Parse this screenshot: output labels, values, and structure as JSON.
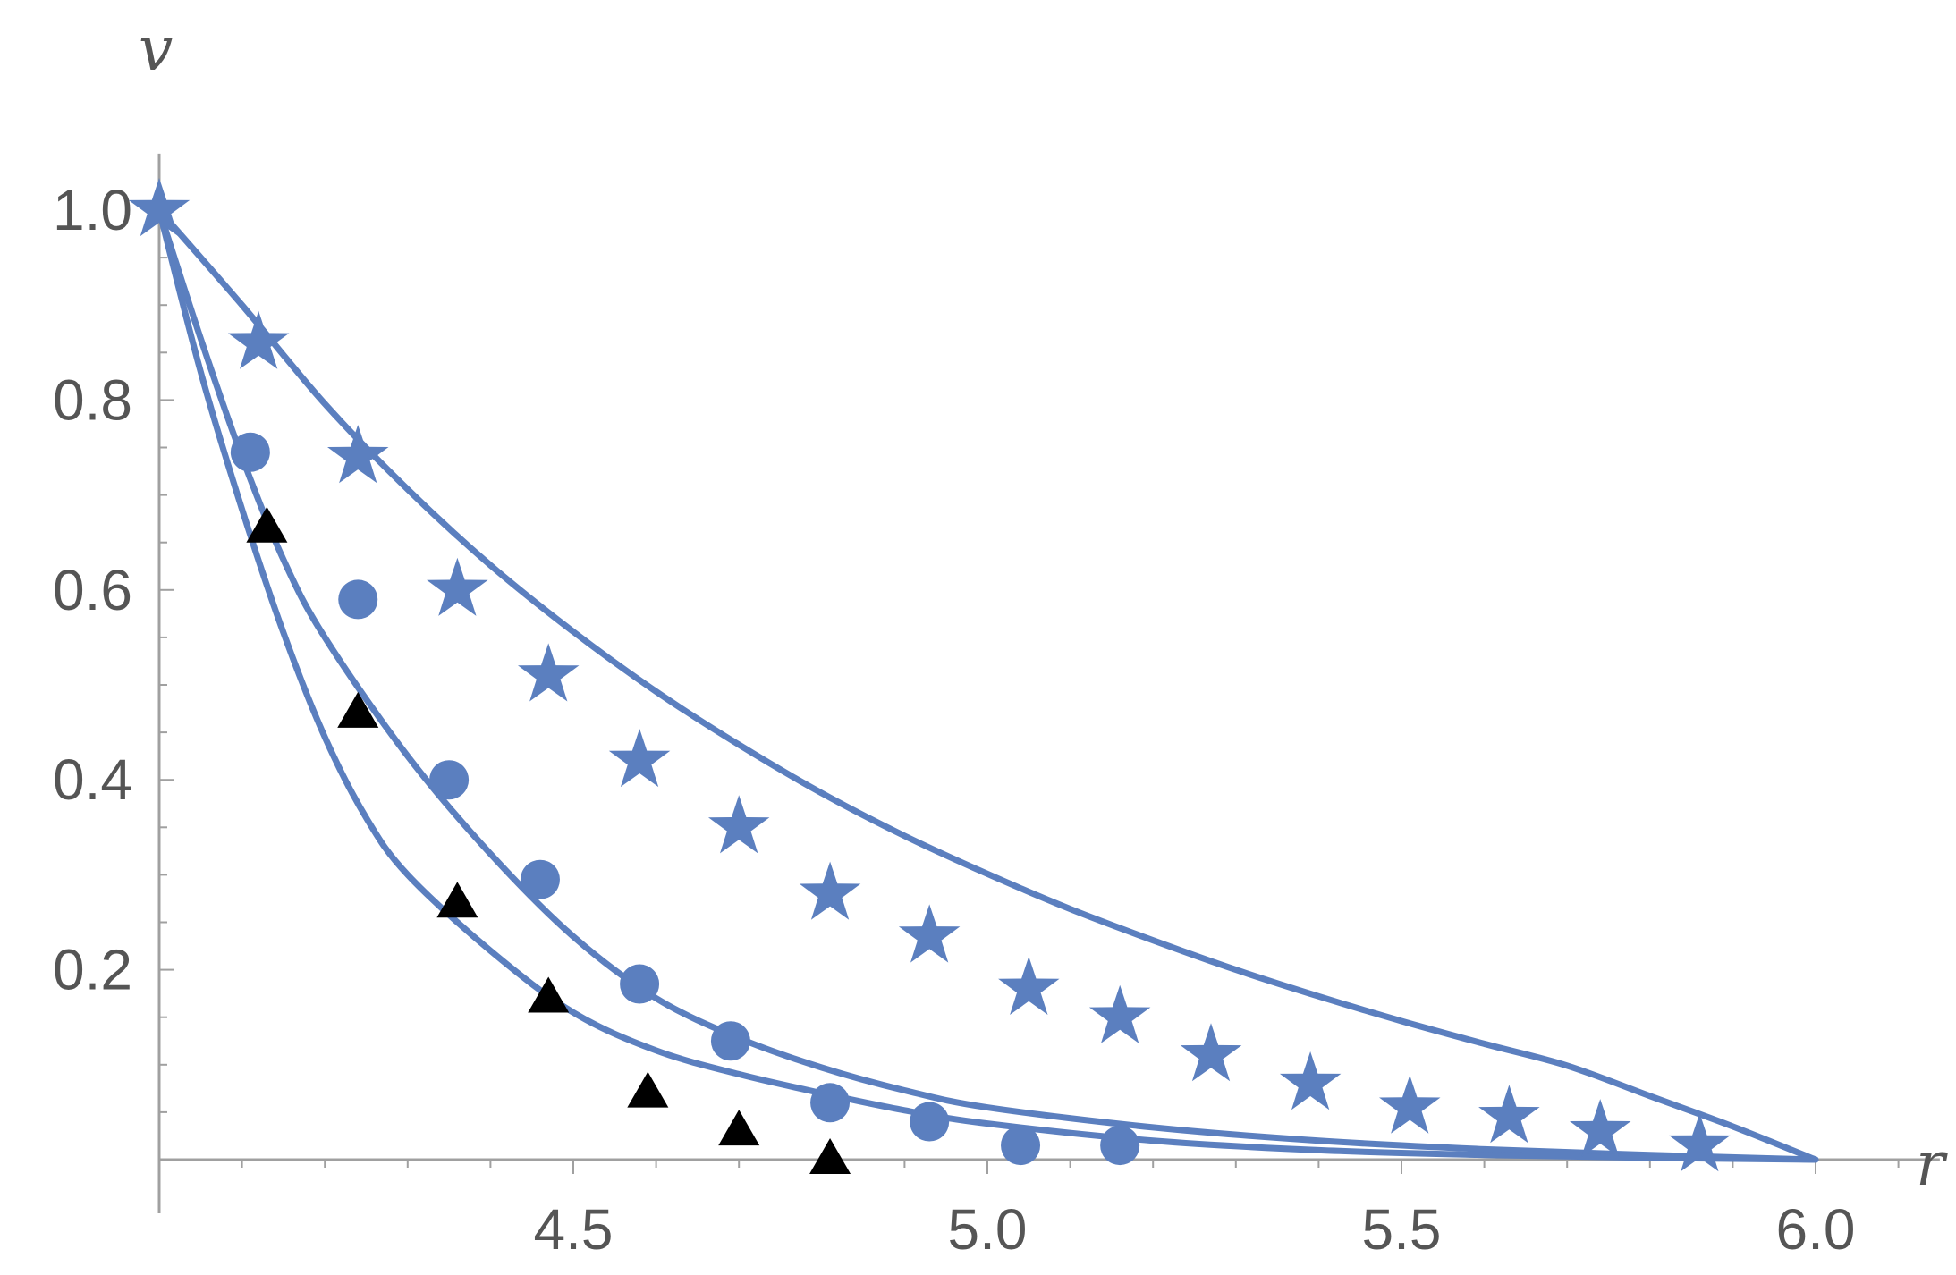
{
  "chart_data": {
    "type": "scatter",
    "title": "",
    "xlabel": "r",
    "ylabel": "v",
    "xlim": [
      4.0,
      6.15
    ],
    "ylim": [
      0.0,
      1.05
    ],
    "x_ticks": [
      4.5,
      5.0,
      5.5,
      6.0
    ],
    "x_tick_labels": [
      "4.5",
      "5.0",
      "5.5",
      "6.0"
    ],
    "y_ticks": [
      0.2,
      0.4,
      0.6,
      0.8,
      1.0
    ],
    "y_tick_labels": [
      "0.2",
      "0.4",
      "0.6",
      "0.8",
      "1.0"
    ],
    "grid": false,
    "colors": {
      "curve": "#5b7fbf",
      "star": "#5b7fbf",
      "circle": "#5b7fbf",
      "triangle": "#000000",
      "axis": "#a0a0a0",
      "text": "#555555"
    },
    "curves": [
      {
        "x": [
          4.0,
          4.1,
          4.2,
          4.3,
          4.4,
          4.5,
          4.6,
          4.7,
          4.8,
          4.9,
          5.0,
          5.1,
          5.2,
          5.3,
          5.4,
          5.5,
          5.6,
          5.7,
          5.8,
          5.9,
          6.0
        ],
        "y": [
          1.0,
          0.9,
          0.796,
          0.706,
          0.626,
          0.556,
          0.493,
          0.437,
          0.386,
          0.341,
          0.301,
          0.264,
          0.231,
          0.2,
          0.172,
          0.146,
          0.122,
          0.099,
          0.067,
          0.035,
          0.0
        ]
      },
      {
        "x": [
          4.0,
          4.05,
          4.1,
          4.15,
          4.2,
          4.3,
          4.4,
          4.5,
          4.6,
          4.7,
          4.8,
          4.9,
          5.0,
          5.2,
          5.4,
          5.6,
          5.8,
          6.0
        ],
        "y": [
          1.0,
          0.865,
          0.74,
          0.632,
          0.55,
          0.425,
          0.322,
          0.235,
          0.17,
          0.128,
          0.097,
          0.073,
          0.055,
          0.034,
          0.02,
          0.011,
          0.005,
          0.0
        ]
      },
      {
        "x": [
          4.0,
          4.05,
          4.1,
          4.15,
          4.2,
          4.25,
          4.3,
          4.4,
          4.5,
          4.6,
          4.7,
          4.8,
          4.9,
          5.0,
          5.2,
          5.4,
          5.6,
          5.8,
          6.0
        ],
        "y": [
          1.0,
          0.83,
          0.685,
          0.555,
          0.445,
          0.36,
          0.3,
          0.22,
          0.155,
          0.115,
          0.09,
          0.07,
          0.052,
          0.038,
          0.02,
          0.01,
          0.005,
          0.002,
          0.0
        ]
      }
    ],
    "series": [
      {
        "marker": "star",
        "x": [
          4.0,
          4.12,
          4.24,
          4.36,
          4.47,
          4.58,
          4.7,
          4.81,
          4.93,
          5.05,
          5.16,
          5.27,
          5.39,
          5.51,
          5.63,
          5.74,
          5.86
        ],
        "y": [
          1.0,
          0.86,
          0.74,
          0.6,
          0.51,
          0.42,
          0.35,
          0.28,
          0.235,
          0.18,
          0.15,
          0.11,
          0.08,
          0.055,
          0.045,
          0.03,
          0.015
        ]
      },
      {
        "marker": "circle",
        "x": [
          4.11,
          4.24,
          4.35,
          4.46,
          4.58,
          4.69,
          4.81,
          4.93,
          5.04,
          5.16
        ],
        "y": [
          0.745,
          0.59,
          0.4,
          0.295,
          0.185,
          0.125,
          0.06,
          0.04,
          0.015,
          0.015
        ]
      },
      {
        "marker": "triangle",
        "x": [
          4.13,
          4.24,
          4.36,
          4.47,
          4.59,
          4.7,
          4.81
        ],
        "y": [
          0.665,
          0.47,
          0.27,
          0.17,
          0.07,
          0.03,
          0.0
        ]
      }
    ]
  }
}
